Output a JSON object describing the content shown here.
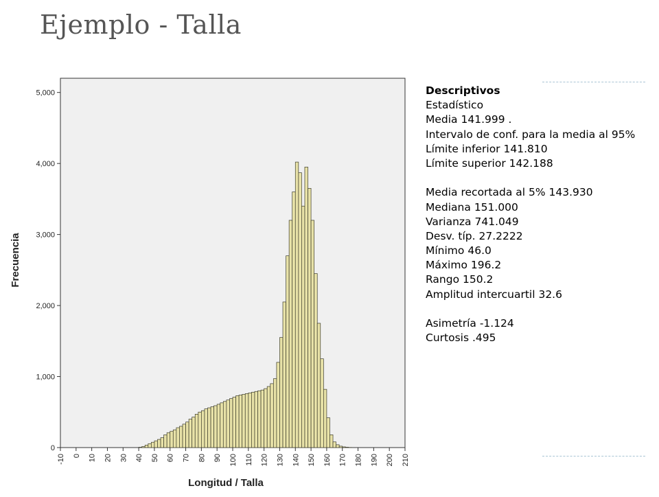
{
  "title": "Ejemplo - Talla",
  "stats": {
    "heading": "Descriptivos",
    "rows": [
      {
        "label": "Estadístico",
        "value": ""
      },
      {
        "label": "Media",
        "value": "141.999 ."
      },
      {
        "label": "Intervalo de conf. para la media al 95%",
        "value": ""
      },
      {
        "label": "Límite inferior",
        "value": "141.810"
      },
      {
        "label": "Límite superior",
        "value": "142.188"
      },
      {
        "label": "",
        "value": ""
      },
      {
        "label": "Media recortada al 5%",
        "value": "143.930"
      },
      {
        "label": "Mediana",
        "value": "151.000"
      },
      {
        "label": "Varianza",
        "value": "741.049"
      },
      {
        "label": "Desv. típ.",
        "value": "27.2222"
      },
      {
        "label": "Mínimo",
        "value": "46.0"
      },
      {
        "label": "Máximo",
        "value": "196.2"
      },
      {
        "label": "Rango",
        "value": "150.2"
      },
      {
        "label": "Amplitud intercuartil",
        "value": "32.6"
      },
      {
        "label": "",
        "value": ""
      },
      {
        "label": "Asimetría",
        "value": "-1.124"
      },
      {
        "label": "Curtosis",
        "value": ".495"
      }
    ]
  },
  "colors": {
    "bar_fill": "#e8e2a8",
    "bar_stroke": "#3a3a2a",
    "plot_bg": "#f0f0f0",
    "accent": "#a8c4d4"
  },
  "chart_data": {
    "type": "bar",
    "xlabel": "Longitud / Talla",
    "ylabel": "Frecuencia",
    "xlim": [
      -10,
      210
    ],
    "ylim": [
      0,
      5200
    ],
    "x_ticks": [
      "-10",
      "0",
      "10",
      "20",
      "30",
      "40",
      "50",
      "60",
      "70",
      "80",
      "90",
      "100",
      "110",
      "120",
      "130",
      "140",
      "150",
      "160",
      "170",
      "180",
      "190",
      "200",
      "210"
    ],
    "y_ticks": [
      "0",
      "1,000",
      "2,000",
      "3,000",
      "4,000",
      "5,000"
    ],
    "bin_width": 2,
    "bin_start": 40,
    "values": [
      5,
      15,
      35,
      55,
      75,
      95,
      115,
      140,
      180,
      210,
      230,
      250,
      280,
      300,
      330,
      360,
      400,
      430,
      470,
      500,
      520,
      545,
      560,
      575,
      590,
      610,
      630,
      650,
      670,
      690,
      710,
      730,
      740,
      750,
      760,
      770,
      780,
      790,
      800,
      810,
      830,
      860,
      900,
      970,
      1200,
      1550,
      2050,
      2700,
      3200,
      3600,
      4020,
      3870,
      3400,
      3950,
      3650,
      3200,
      2450,
      1750,
      1250,
      820,
      420,
      180,
      80,
      40,
      20,
      10,
      5,
      2,
      0,
      0,
      0,
      0,
      0,
      0,
      0,
      0,
      0,
      0
    ]
  }
}
